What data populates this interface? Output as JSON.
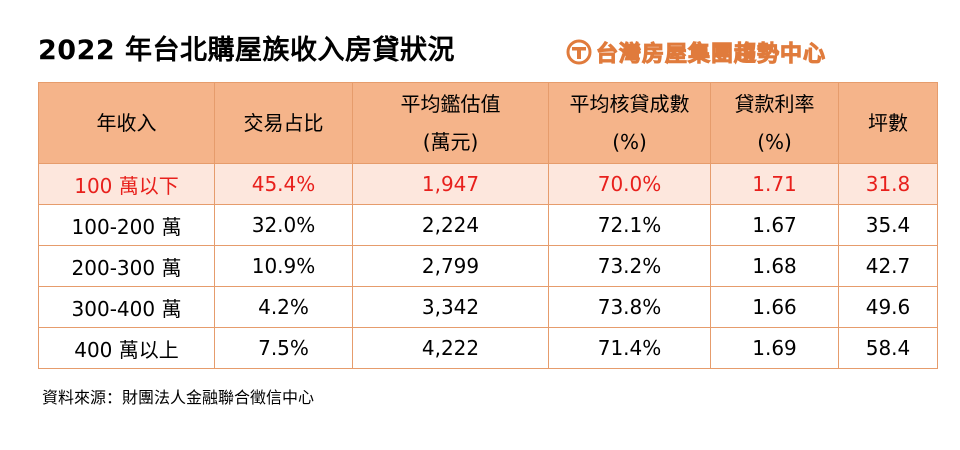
{
  "title": "2022 年台北購屋族收入房貸狀況",
  "brand": {
    "logo_icon": "brand-t-logo-icon",
    "name": "台灣房屋集團趨勢中心",
    "color": "#e07b3c"
  },
  "table": {
    "headers": [
      {
        "line1": "年收入",
        "line2": ""
      },
      {
        "line1": "交易占比",
        "line2": ""
      },
      {
        "line1": "平均鑑估值",
        "line2": "(萬元)"
      },
      {
        "line1": "平均核貸成數",
        "line2": "(%)"
      },
      {
        "line1": "貸款利率",
        "line2": "(%)"
      },
      {
        "line1": "坪數",
        "line2": ""
      }
    ],
    "rows": [
      [
        "100 萬以下",
        "45.4%",
        "1,947",
        "70.0%",
        "1.71",
        "31.8"
      ],
      [
        "100-200 萬",
        "32.0%",
        "2,224",
        "72.1%",
        "1.67",
        "35.4"
      ],
      [
        "200-300 萬",
        "10.9%",
        "2,799",
        "73.2%",
        "1.68",
        "42.7"
      ],
      [
        "300-400 萬",
        "4.2%",
        "3,342",
        "73.8%",
        "1.66",
        "49.6"
      ],
      [
        "400 萬以上",
        "7.5%",
        "4,222",
        "71.4%",
        "1.69",
        "58.4"
      ]
    ],
    "header_color": "#f5b48a",
    "highlight_row_bg": "#fde7dd",
    "highlight_text_color": "#e8201c",
    "border_color": "#e69c6c"
  },
  "source": "資料來源：財團法人金融聯合徵信中心"
}
